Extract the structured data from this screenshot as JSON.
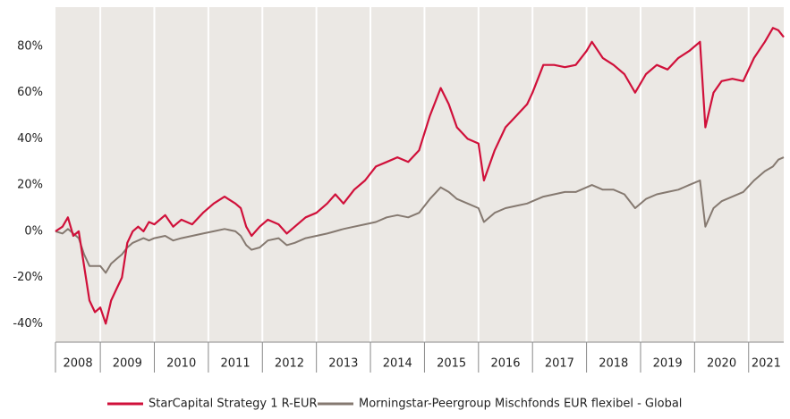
{
  "chart_data": {
    "type": "line",
    "x": [
      2008.17,
      2008.3,
      2008.4,
      2008.5,
      2008.6,
      2008.7,
      2008.8,
      2008.9,
      2009.0,
      2009.1,
      2009.2,
      2009.3,
      2009.4,
      2009.5,
      2009.6,
      2009.7,
      2009.8,
      2009.9,
      2010.0,
      2010.2,
      2010.35,
      2010.5,
      2010.7,
      2010.9,
      2011.1,
      2011.3,
      2011.5,
      2011.6,
      2011.7,
      2011.8,
      2011.95,
      2012.1,
      2012.3,
      2012.45,
      2012.6,
      2012.8,
      2013.0,
      2013.2,
      2013.35,
      2013.5,
      2013.7,
      2013.9,
      2014.1,
      2014.3,
      2014.5,
      2014.7,
      2014.9,
      2015.1,
      2015.3,
      2015.45,
      2015.6,
      2015.8,
      2016.0,
      2016.1,
      2016.3,
      2016.5,
      2016.7,
      2016.9,
      2017.0,
      2017.2,
      2017.4,
      2017.6,
      2017.8,
      2018.0,
      2018.1,
      2018.3,
      2018.5,
      2018.7,
      2018.9,
      2019.1,
      2019.3,
      2019.5,
      2019.7,
      2019.9,
      2020.1,
      2020.2,
      2020.35,
      2020.5,
      2020.7,
      2020.9,
      2021.1,
      2021.3,
      2021.45,
      2021.55,
      2021.65
    ],
    "series": [
      {
        "name": "StarCapital Strategy 1 R-EUR",
        "color": "#d0103a",
        "values": [
          0,
          2,
          6,
          -2,
          0,
          -15,
          -30,
          -35,
          -33,
          -40,
          -30,
          -25,
          -20,
          -5,
          0,
          2,
          0,
          4,
          3,
          7,
          2,
          5,
          3,
          8,
          12,
          15,
          12,
          10,
          2,
          -2,
          2,
          5,
          3,
          -1,
          2,
          6,
          8,
          12,
          16,
          12,
          18,
          22,
          28,
          30,
          32,
          30,
          35,
          50,
          62,
          55,
          45,
          40,
          38,
          22,
          35,
          45,
          50,
          55,
          60,
          72,
          72,
          71,
          72,
          78,
          82,
          75,
          72,
          68,
          60,
          68,
          72,
          70,
          75,
          78,
          82,
          45,
          60,
          65,
          66,
          65,
          75,
          82,
          88,
          87,
          84
        ]
      },
      {
        "name": "Morningstar-Peergroup Mischfonds EUR flexibel - Global",
        "color": "#857970",
        "values": [
          0,
          -1,
          1,
          -1,
          -3,
          -10,
          -15,
          -15,
          -15,
          -18,
          -14,
          -12,
          -10,
          -7,
          -5,
          -4,
          -3,
          -4,
          -3,
          -2,
          -4,
          -3,
          -2,
          -1,
          0,
          1,
          0,
          -2,
          -6,
          -8,
          -7,
          -4,
          -3,
          -6,
          -5,
          -3,
          -2,
          -1,
          0,
          1,
          2,
          3,
          4,
          6,
          7,
          6,
          8,
          14,
          19,
          17,
          14,
          12,
          10,
          4,
          8,
          10,
          11,
          12,
          13,
          15,
          16,
          17,
          17,
          19,
          20,
          18,
          18,
          16,
          10,
          14,
          16,
          17,
          18,
          20,
          22,
          2,
          10,
          13,
          15,
          17,
          22,
          26,
          28,
          31,
          32
        ]
      }
    ],
    "xlim": [
      2008.17,
      2021.65
    ],
    "xticks": [
      2009,
      2010,
      2011,
      2012,
      2013,
      2014,
      2015,
      2016,
      2017,
      2018,
      2019,
      2020,
      2021
    ],
    "year_labels": [
      "2008",
      "2009",
      "2010",
      "2011",
      "2012",
      "2013",
      "2014",
      "2015",
      "2016",
      "2017",
      "2018",
      "2019",
      "2020",
      "2021"
    ],
    "ylim": [
      -48,
      97
    ],
    "yticks": [
      {
        "value": -40,
        "label": "-40%"
      },
      {
        "value": -20,
        "label": "-20%"
      },
      {
        "value": 0,
        "label": "0%"
      },
      {
        "value": 20,
        "label": "20%"
      },
      {
        "value": 40,
        "label": "40%"
      },
      {
        "value": 60,
        "label": "60%"
      },
      {
        "value": 80,
        "label": "80%"
      }
    ],
    "grid": true
  }
}
